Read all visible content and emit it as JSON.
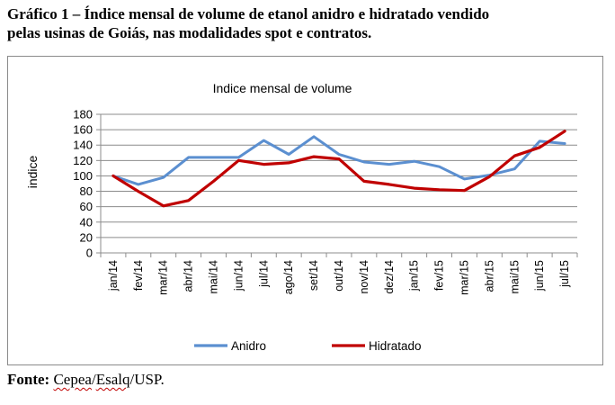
{
  "caption": {
    "line1": "Gráfico 1 – Índice mensal de volume de etanol anidro e hidratado vendido",
    "line2": "pelas usinas de Goiás, nas modalidades spot e contratos."
  },
  "source": {
    "label": "Fonte:",
    "org1": "Cepea",
    "sep1": "/",
    "org2": "Esalq",
    "sep2": "/USP."
  },
  "chart_data": {
    "type": "line",
    "title": "Indice mensal de volume",
    "ylabel": "indice",
    "xlabel": "",
    "ylim": [
      0,
      180
    ],
    "yticks": [
      0,
      20,
      40,
      60,
      80,
      100,
      120,
      140,
      160,
      180
    ],
    "grid": true,
    "legend": "bottom",
    "categories": [
      "jan/14",
      "fev/14",
      "mar/14",
      "abr/14",
      "mai/14",
      "jun/14",
      "jul/14",
      "ago/14",
      "set/14",
      "out/14",
      "nov/14",
      "dez/14",
      "jan/15",
      "fev/15",
      "mar/15",
      "abr/15",
      "mai/15",
      "jun/15",
      "jul/15"
    ],
    "series": [
      {
        "name": "Anidro",
        "color": "#5b8fd0",
        "values": [
          100,
          89,
          98,
          124,
          124,
          124,
          146,
          128,
          151,
          128,
          118,
          115,
          119,
          112,
          96,
          101,
          109,
          145,
          142
        ]
      },
      {
        "name": "Hidratado",
        "color": "#c00000",
        "values": [
          100,
          80,
          61,
          68,
          93,
          120,
          115,
          117,
          125,
          122,
          93,
          89,
          84,
          82,
          81,
          99,
          126,
          137,
          158
        ]
      }
    ]
  }
}
